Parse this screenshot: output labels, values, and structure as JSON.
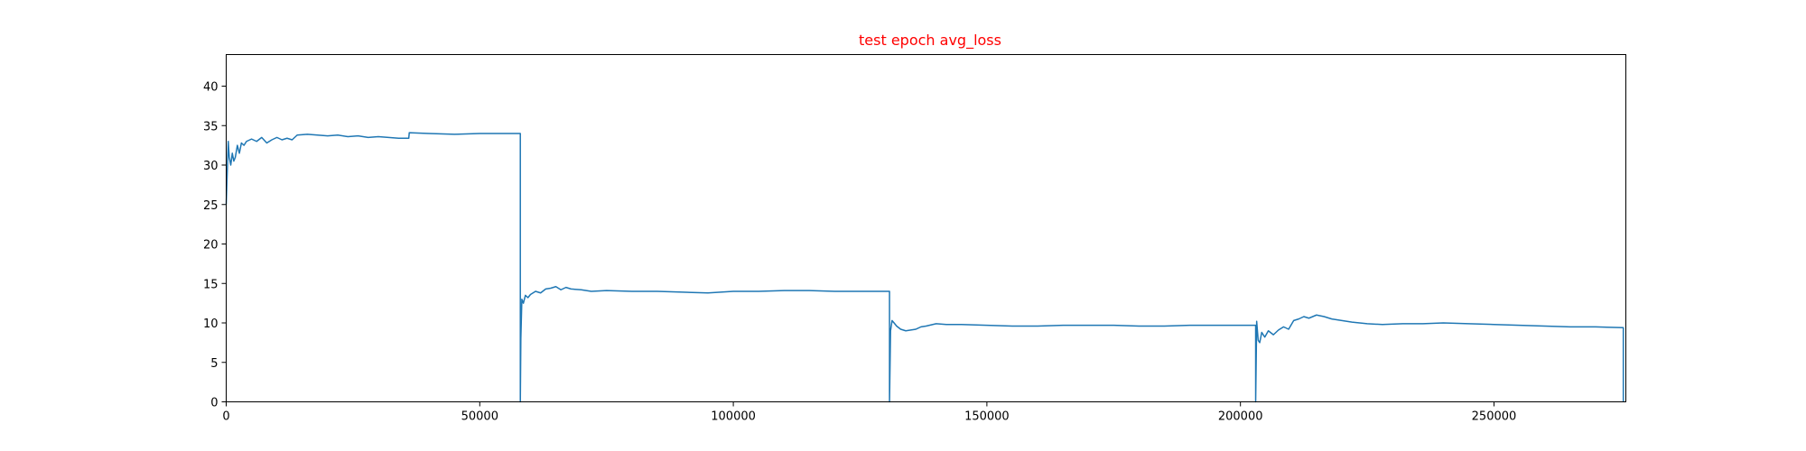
{
  "chart_data": {
    "type": "line",
    "title": "test epoch avg_loss",
    "title_color": "#ff0000",
    "line_color": "#1f77b4",
    "xlabel": "",
    "ylabel": "",
    "xlim": [
      0,
      276000
    ],
    "ylim": [
      0,
      44
    ],
    "xticks": [
      0,
      50000,
      100000,
      150000,
      200000,
      250000
    ],
    "yticks": [
      0,
      5,
      10,
      15,
      20,
      25,
      30,
      35,
      40
    ],
    "grid": false,
    "series": [
      {
        "x": [
          0,
          200,
          400,
          600,
          900,
          1200,
          1500,
          1800,
          2200,
          2600,
          3000,
          3500,
          4000,
          5000,
          6000,
          7000,
          8000,
          9000,
          10000,
          11000,
          12000,
          13000,
          14000,
          16000,
          18000,
          20000,
          22000,
          24000,
          26000,
          28000,
          30000,
          32000,
          34000,
          36000,
          36100,
          40000,
          45000,
          50000,
          55000,
          58000,
          58000,
          58100,
          58300,
          58600,
          59000,
          59500,
          60000,
          61000,
          62000,
          63000,
          64000,
          65000,
          66000,
          67000,
          68000,
          70000,
          72000,
          75000,
          80000,
          85000,
          90000,
          95000,
          100000,
          105000,
          110000,
          115000,
          120000,
          125000,
          130800,
          130800,
          131000,
          131300,
          131700,
          132200,
          133000,
          134000,
          135000,
          136000,
          137000,
          138000,
          140000,
          142000,
          145000,
          150000,
          155000,
          160000,
          165000,
          170000,
          175000,
          180000,
          185000,
          190000,
          195000,
          200000,
          203000,
          203000,
          203200,
          203500,
          203800,
          204200,
          204800,
          205500,
          206500,
          207500,
          208500,
          209500,
          210500,
          211500,
          212500,
          213500,
          215000,
          216500,
          218000,
          220000,
          222000,
          225000,
          228000,
          232000,
          236000,
          240000,
          245000,
          250000,
          255000,
          260000,
          265000,
          270000,
          275500,
          275500
        ],
        "y": [
          25,
          29,
          33,
          31,
          30,
          31.5,
          30.5,
          31,
          32.5,
          31.5,
          32.8,
          32.5,
          33,
          33.3,
          33,
          33.5,
          32.8,
          33.2,
          33.5,
          33.2,
          33.4,
          33.2,
          33.8,
          33.9,
          33.8,
          33.7,
          33.8,
          33.6,
          33.7,
          33.5,
          33.6,
          33.5,
          33.4,
          33.4,
          34.1,
          34.0,
          33.9,
          34.0,
          34.0,
          34.0,
          0,
          8,
          13,
          12.5,
          13.5,
          13.2,
          13.6,
          14.0,
          13.8,
          14.3,
          14.4,
          14.6,
          14.2,
          14.5,
          14.3,
          14.2,
          14.0,
          14.1,
          14.0,
          14.0,
          13.9,
          13.8,
          14.0,
          14.0,
          14.1,
          14.1,
          14.0,
          14.0,
          14.0,
          0,
          9,
          10.3,
          10.0,
          9.6,
          9.2,
          9.0,
          9.1,
          9.2,
          9.5,
          9.6,
          9.9,
          9.8,
          9.8,
          9.7,
          9.6,
          9.6,
          9.7,
          9.7,
          9.7,
          9.6,
          9.6,
          9.7,
          9.7,
          9.7,
          9.7,
          0,
          10.2,
          7.8,
          7.5,
          8.8,
          8.2,
          9.0,
          8.5,
          9.1,
          9.5,
          9.2,
          10.3,
          10.5,
          10.8,
          10.6,
          11.0,
          10.8,
          10.5,
          10.3,
          10.1,
          9.9,
          9.8,
          9.9,
          9.9,
          10.0,
          9.9,
          9.8,
          9.7,
          9.6,
          9.5,
          9.5,
          9.4,
          0
        ]
      }
    ]
  }
}
